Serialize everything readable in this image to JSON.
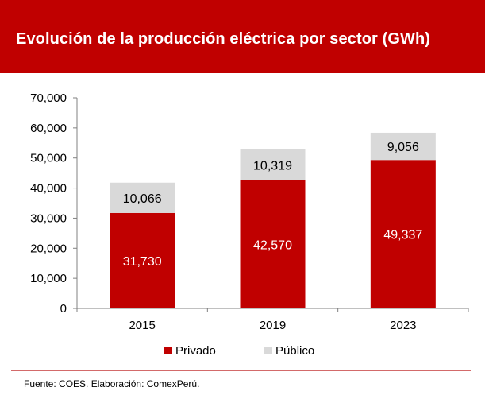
{
  "header": {
    "title": "Evolución de la producción eléctrica por sector (GWh)"
  },
  "footer": {
    "note": "Fuente: COES. Elaboración: ComexPerú."
  },
  "colors": {
    "header_bg": "#c00000",
    "privado": "#c00000",
    "publico": "#d9d9d9",
    "footer_rule": "#d36a6a"
  },
  "chart_data": {
    "type": "bar",
    "stacked": true,
    "categories": [
      "2015",
      "2019",
      "2023"
    ],
    "series": [
      {
        "name": "Privado",
        "values": [
          31730,
          42570,
          49337
        ],
        "labels": [
          "31,730",
          "42,570",
          "49,337"
        ],
        "color": "#c00000",
        "label_color": "#ffffff"
      },
      {
        "name": "Público",
        "values": [
          10066,
          10319,
          9056
        ],
        "labels": [
          "10,066",
          "10,319",
          "9,056"
        ],
        "color": "#d9d9d9",
        "label_color": "#000000"
      }
    ],
    "ylim": [
      0,
      70000
    ],
    "yticks": [
      "0",
      "10,000",
      "20,000",
      "30,000",
      "40,000",
      "50,000",
      "60,000",
      "70,000"
    ],
    "grid": false,
    "legend": "bottom"
  }
}
